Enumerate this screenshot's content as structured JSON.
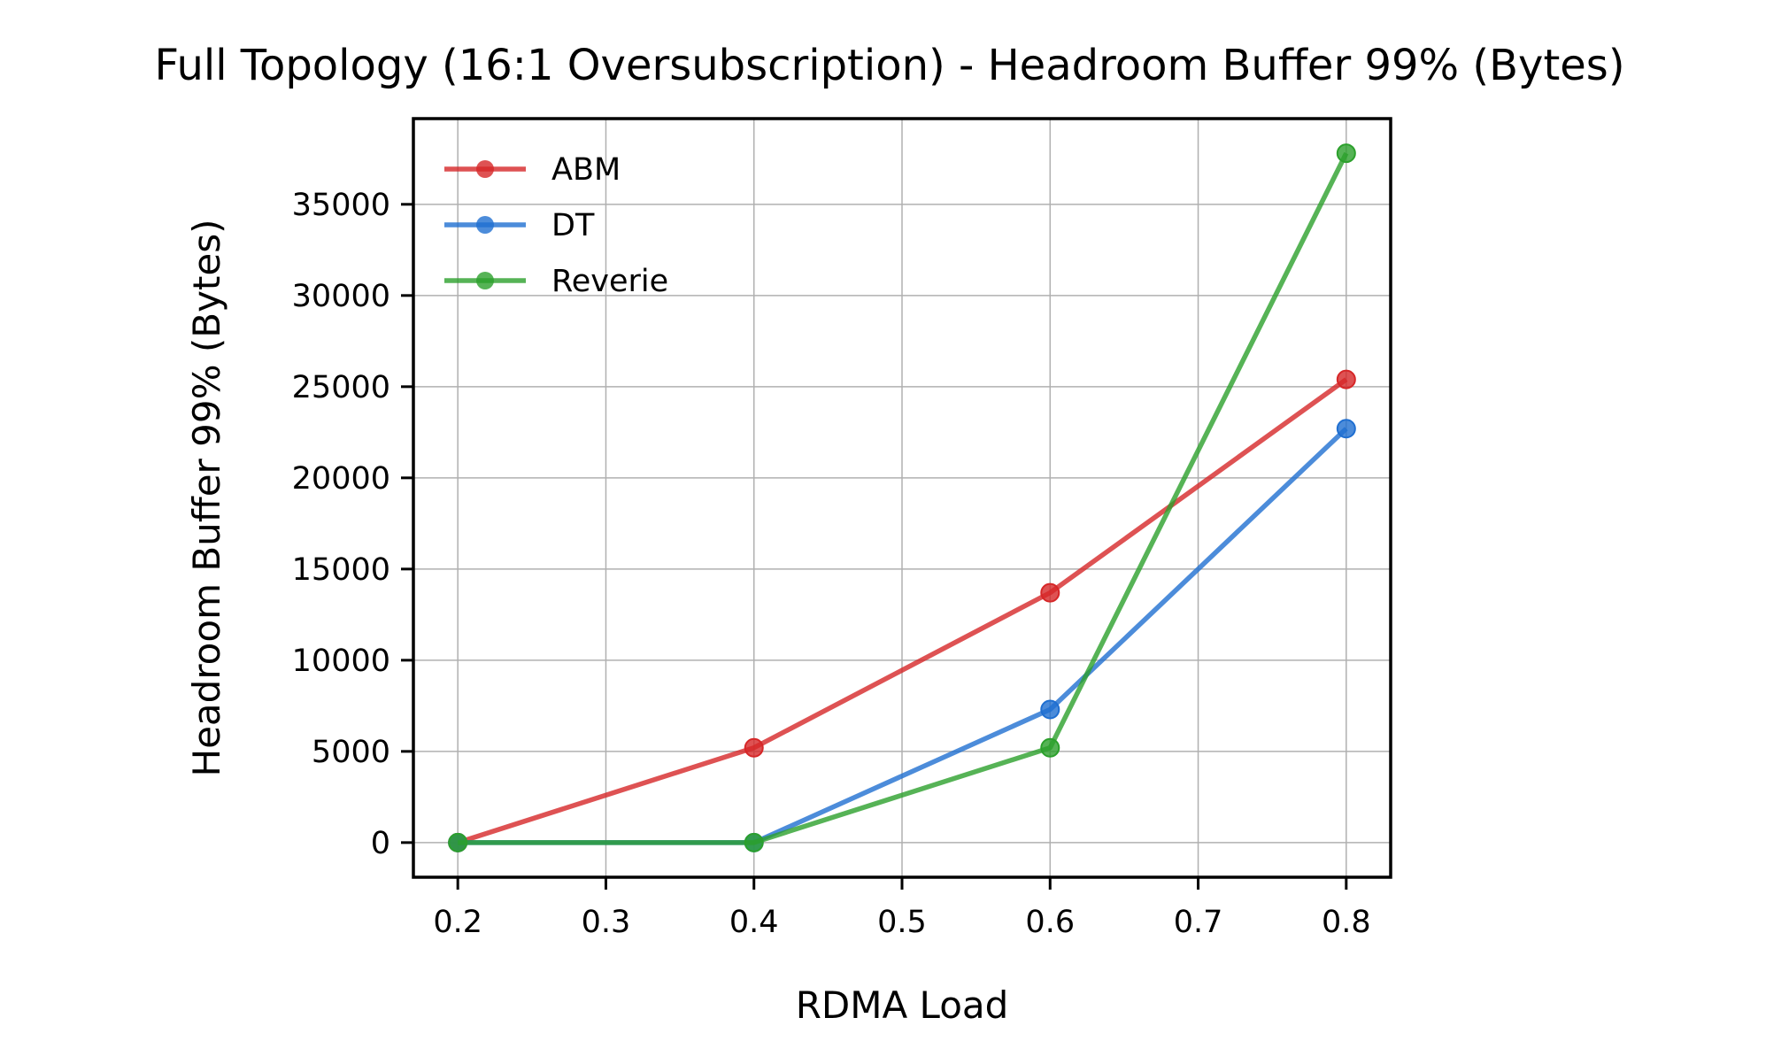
{
  "chart_data": {
    "type": "line",
    "title": "Full Topology (16:1 Oversubscription) - Headroom Buffer 99% (Bytes)",
    "xlabel": "RDMA Load",
    "ylabel": "Headroom Buffer 99% (Bytes)",
    "x": [
      0.2,
      0.4,
      0.6,
      0.8
    ],
    "xlim": [
      0.17,
      0.83
    ],
    "ylim": [
      -1900,
      39700
    ],
    "xticks": [
      0.2,
      0.3,
      0.4,
      0.5,
      0.6,
      0.7,
      0.8
    ],
    "xtick_labels": [
      "0.2",
      "0.3",
      "0.4",
      "0.5",
      "0.6",
      "0.7",
      "0.8"
    ],
    "yticks": [
      0,
      5000,
      10000,
      15000,
      20000,
      25000,
      30000,
      35000
    ],
    "ytick_labels": [
      "0",
      "5000",
      "10000",
      "15000",
      "20000",
      "25000",
      "30000",
      "35000"
    ],
    "grid": true,
    "legend_position": "top-left",
    "series": [
      {
        "name": "ABM",
        "color": "#d62728",
        "values": [
          0,
          5200,
          13700,
          25400
        ]
      },
      {
        "name": "DT",
        "color": "#1f6fd1",
        "values": [
          0,
          0,
          7300,
          22700
        ]
      },
      {
        "name": "Reverie",
        "color": "#2ca02c",
        "values": [
          0,
          0,
          5200,
          37800
        ]
      }
    ]
  }
}
